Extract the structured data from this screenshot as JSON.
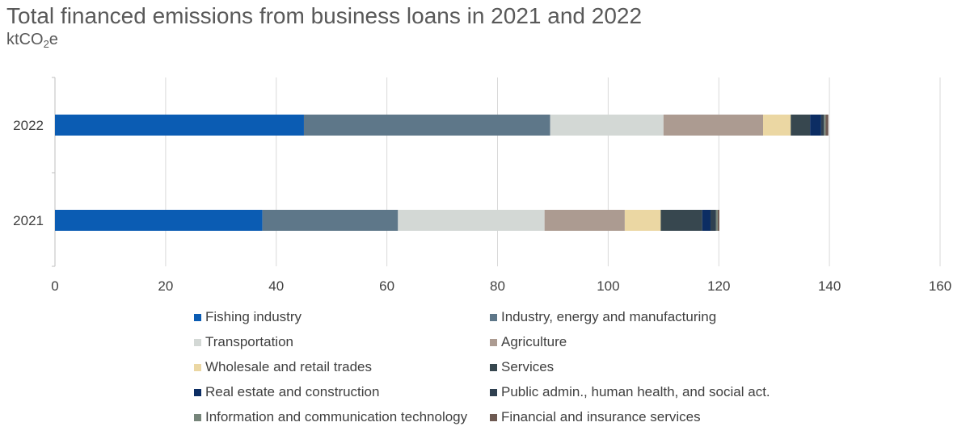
{
  "chart_data": {
    "type": "bar",
    "orientation": "horizontal",
    "stacked": true,
    "title": "Total financed emissions from business loans in 2021 and 2022",
    "subtitle": {
      "main": "ktCO",
      "sub": "2",
      "tail": "e"
    },
    "categories": [
      "2022",
      "2021"
    ],
    "xlim": [
      0,
      160
    ],
    "xticks": [
      "0",
      "20",
      "40",
      "60",
      "80",
      "100",
      "120",
      "140",
      "160"
    ],
    "grid": true,
    "legend_position": "bottom",
    "series": [
      {
        "name": "Fishing industry",
        "color": "#0B5CB3",
        "values": [
          45,
          37.5
        ]
      },
      {
        "name": "Industry, energy and manufacturing",
        "color": "#5E7789",
        "values": [
          44.5,
          24.5
        ]
      },
      {
        "name": "Transportation",
        "color": "#D3D8D5",
        "values": [
          20.5,
          26.5
        ]
      },
      {
        "name": "Agriculture",
        "color": "#AC9B91",
        "values": [
          18,
          14.5
        ]
      },
      {
        "name": "Wholesale and retail trades",
        "color": "#EBD7A3",
        "values": [
          5,
          6.5
        ]
      },
      {
        "name": "Services",
        "color": "#37474F",
        "values": [
          3.5,
          7.5
        ]
      },
      {
        "name": "Real estate and construction",
        "color": "#0C2D63",
        "values": [
          2,
          1.5
        ]
      },
      {
        "name": "Public admin., human health, and social act.",
        "color": "#2F4050",
        "values": [
          0.5,
          1
        ]
      },
      {
        "name": "Information and communication technology",
        "color": "#76857A",
        "values": [
          0.3,
          0.3
        ]
      },
      {
        "name": "Financial and insurance services",
        "color": "#6E5A52",
        "values": [
          0.5,
          0.3
        ]
      }
    ]
  }
}
